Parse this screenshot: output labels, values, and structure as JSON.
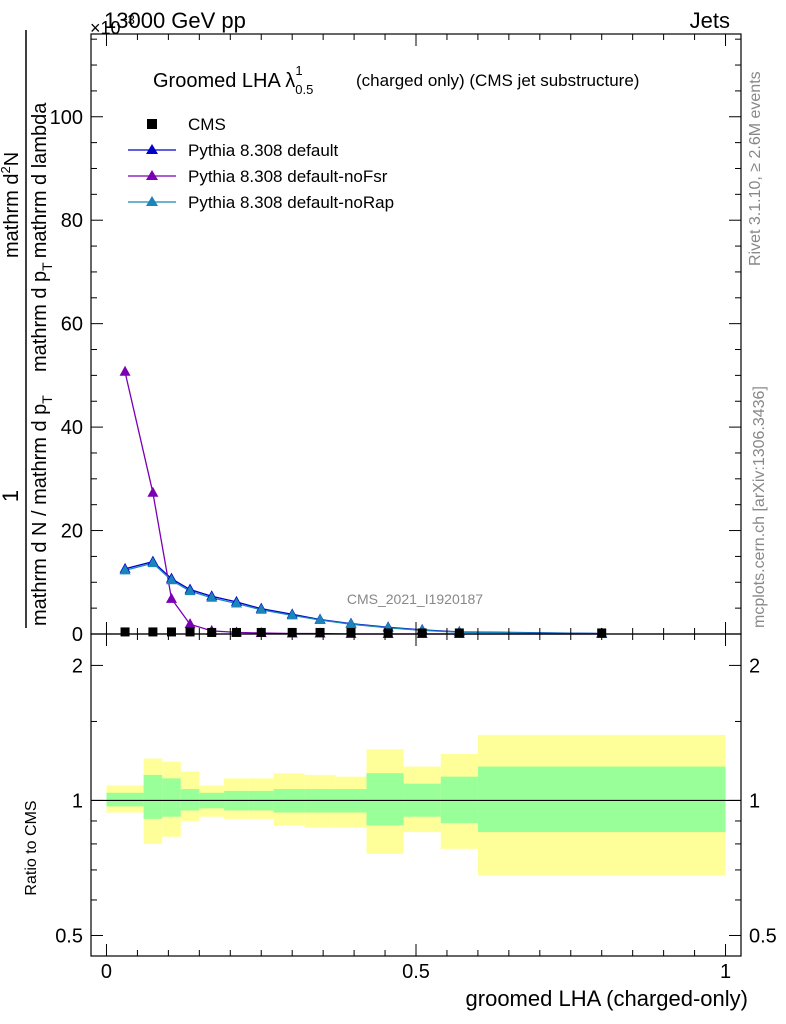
{
  "header": {
    "left_label": "13000 GeV pp",
    "right_label": "Jets",
    "y_exponent_base": "×10",
    "y_exponent_power": "−3"
  },
  "title": {
    "main": "Groomed LHA λ",
    "sup": "1",
    "sub": "0.5",
    "suffix": "(charged only) (CMS jet substructure)"
  },
  "side_labels": {
    "rivet": "Rivet 3.1.10, ≥ 2.6M events",
    "mcplots": "mcplots.cern.ch [arXiv:1306.3436]"
  },
  "watermark": "CMS_2021_I1920187",
  "y_axis_label": {
    "numerator_one": "1",
    "denominator": "mathrm d N / mathrm d p",
    "denominator_sub": "T",
    "rhs_numerator": "mathrm d",
    "rhs_numerator_sup": "2",
    "rhs_numerator_tail": "N",
    "rhs_denominator": "mathrm d p",
    "rhs_denominator_sub": "T",
    "rhs_denominator_tail": "mathrm d lambda"
  },
  "ratio_label": "Ratio to CMS",
  "x_axis_label": "groomed LHA (charged-only)",
  "colors": {
    "cms": "#000000",
    "default": "#0000cc",
    "noFsr": "#7b00b4",
    "noRap": "#1a85b8",
    "band_outer": "#ffff99",
    "band_inner": "#99ff99"
  },
  "chart_data": [
    {
      "type": "line",
      "panel": "main",
      "xlim": [
        -0.025,
        1.025
      ],
      "ylim": [
        0,
        116
      ],
      "y_scale_factor": "1e-3",
      "yticks": [
        0,
        20,
        40,
        60,
        80,
        100
      ],
      "ytick_labels": [
        "0",
        "20",
        "40",
        "60",
        "80",
        "100"
      ],
      "legend": "top-left",
      "x": [
        0.03,
        0.075,
        0.105,
        0.135,
        0.17,
        0.21,
        0.25,
        0.3,
        0.345,
        0.395,
        0.455,
        0.51,
        0.57,
        0.8
      ],
      "series": [
        {
          "name": "CMS",
          "marker": "square",
          "values": [
            0.4,
            0.4,
            0.4,
            0.4,
            0.3,
            0.3,
            0.3,
            0.3,
            0.3,
            0.3,
            0.2,
            0.2,
            0.2,
            0.2
          ]
        },
        {
          "name": "Pythia 8.308 default",
          "marker": "triangle",
          "values": [
            12.6,
            14.0,
            10.7,
            8.6,
            7.3,
            6.2,
            4.9,
            3.8,
            2.8,
            2.0,
            1.3,
            0.8,
            0.4,
            0.1
          ]
        },
        {
          "name": "Pythia 8.308 default-noFsr",
          "marker": "triangle",
          "values": [
            50.7,
            27.3,
            6.8,
            1.9,
            0.6,
            0.3,
            0.2,
            0.1,
            0.1,
            0.0,
            0.0,
            0.0,
            0.0,
            0.0
          ]
        },
        {
          "name": "Pythia 8.308 default-noRap",
          "marker": "triangle",
          "values": [
            12.3,
            13.7,
            10.4,
            8.3,
            7.0,
            5.9,
            4.7,
            3.6,
            2.7,
            1.9,
            1.2,
            0.7,
            0.35,
            0.1
          ]
        }
      ]
    },
    {
      "type": "area",
      "panel": "ratio",
      "xlim": [
        -0.025,
        1.025
      ],
      "ylim": [
        0.45,
        2.35
      ],
      "y_log": true,
      "yticks": [
        0.5,
        1,
        2
      ],
      "ytick_labels": [
        "0.5",
        "1",
        "2"
      ],
      "xticks": [
        0,
        0.5,
        1
      ],
      "xtick_labels": [
        "0",
        "0.5",
        "1"
      ],
      "reference": 1.0,
      "bins": [
        {
          "x0": 0.0,
          "x1": 0.06,
          "outer": [
            0.94,
            1.08
          ],
          "inner": [
            0.97,
            1.04
          ]
        },
        {
          "x0": 0.06,
          "x1": 0.09,
          "outer": [
            0.8,
            1.24
          ],
          "inner": [
            0.91,
            1.14
          ]
        },
        {
          "x0": 0.09,
          "x1": 0.12,
          "outer": [
            0.83,
            1.22
          ],
          "inner": [
            0.92,
            1.12
          ]
        },
        {
          "x0": 0.12,
          "x1": 0.15,
          "outer": [
            0.9,
            1.16
          ],
          "inner": [
            0.95,
            1.06
          ]
        },
        {
          "x0": 0.15,
          "x1": 0.19,
          "outer": [
            0.92,
            1.08
          ],
          "inner": [
            0.96,
            1.04
          ]
        },
        {
          "x0": 0.19,
          "x1": 0.23,
          "outer": [
            0.91,
            1.12
          ],
          "inner": [
            0.95,
            1.05
          ]
        },
        {
          "x0": 0.23,
          "x1": 0.27,
          "outer": [
            0.91,
            1.12
          ],
          "inner": [
            0.95,
            1.05
          ]
        },
        {
          "x0": 0.27,
          "x1": 0.32,
          "outer": [
            0.88,
            1.15
          ],
          "inner": [
            0.94,
            1.06
          ]
        },
        {
          "x0": 0.32,
          "x1": 0.37,
          "outer": [
            0.87,
            1.14
          ],
          "inner": [
            0.94,
            1.06
          ]
        },
        {
          "x0": 0.37,
          "x1": 0.42,
          "outer": [
            0.87,
            1.13
          ],
          "inner": [
            0.94,
            1.06
          ]
        },
        {
          "x0": 0.42,
          "x1": 0.48,
          "outer": [
            0.76,
            1.3
          ],
          "inner": [
            0.88,
            1.15
          ]
        },
        {
          "x0": 0.48,
          "x1": 0.54,
          "outer": [
            0.85,
            1.19
          ],
          "inner": [
            0.92,
            1.09
          ]
        },
        {
          "x0": 0.54,
          "x1": 0.6,
          "outer": [
            0.78,
            1.27
          ],
          "inner": [
            0.89,
            1.13
          ]
        },
        {
          "x0": 0.6,
          "x1": 1.0,
          "outer": [
            0.68,
            1.4
          ],
          "inner": [
            0.85,
            1.19
          ]
        }
      ]
    }
  ]
}
